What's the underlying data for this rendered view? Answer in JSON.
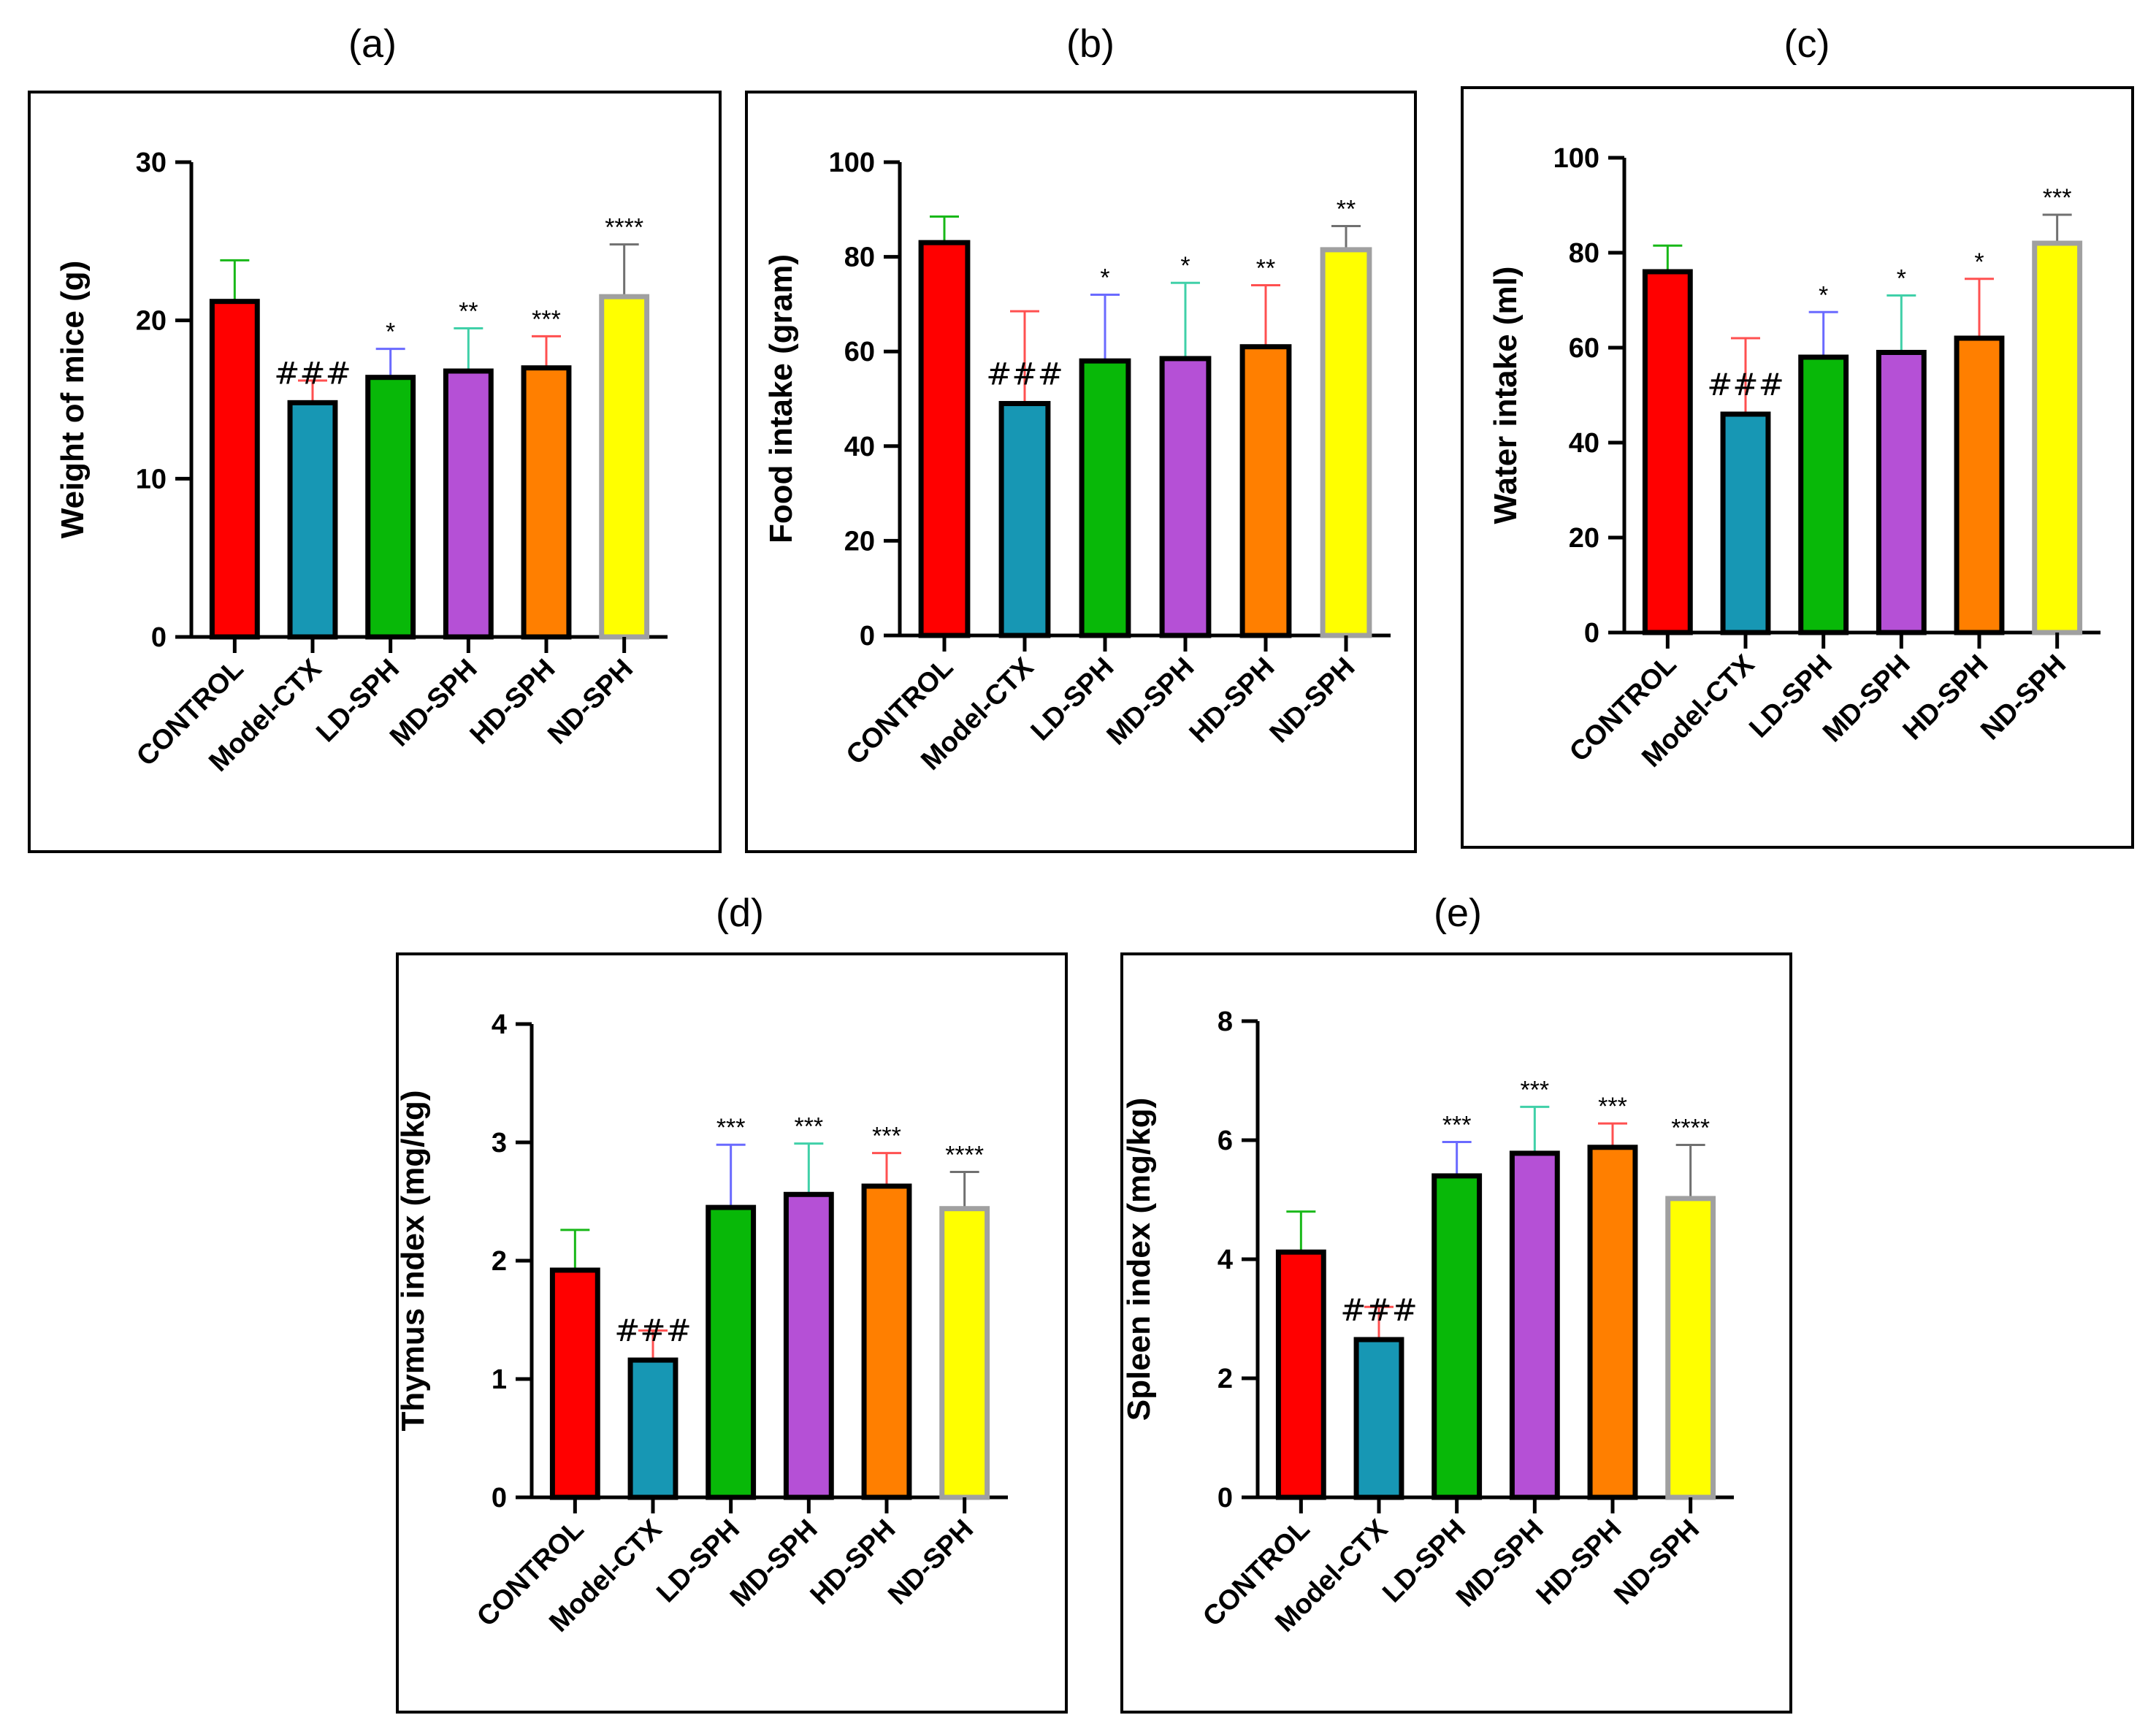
{
  "chart_data": [
    {
      "id": "a",
      "type": "bar",
      "panel_label": "(a)",
      "ylabel": "Weight of mice (g)",
      "ylim": [
        0,
        30
      ],
      "yticks": [
        "0",
        "10",
        "20",
        "30"
      ],
      "categories": [
        "CONTROL",
        "Model-CTX",
        "LD-SPH",
        "MD-SPH",
        "HD-SPH",
        "ND-SPH"
      ],
      "values": [
        21.2,
        14.8,
        16.4,
        16.8,
        17.0,
        21.5
      ],
      "errors": [
        2.6,
        1.4,
        1.8,
        2.7,
        2.0,
        3.3
      ],
      "significance": [
        "",
        "###",
        "*",
        "**",
        "***",
        "****"
      ]
    },
    {
      "id": "b",
      "type": "bar",
      "panel_label": "(b)",
      "ylabel": "Food intake (gram)",
      "ylim": [
        0,
        100
      ],
      "yticks": [
        "0",
        "20",
        "40",
        "60",
        "80",
        "100"
      ],
      "categories": [
        "CONTROL",
        "Model-CTX",
        "LD-SPH",
        "MD-SPH",
        "HD-SPH",
        "ND-SPH"
      ],
      "values": [
        83.0,
        49.0,
        58.0,
        58.5,
        61.0,
        81.5
      ],
      "errors": [
        5.5,
        19.5,
        14.0,
        16.0,
        13.0,
        5.0
      ],
      "significance": [
        "",
        "###",
        "*",
        "*",
        "**",
        "**"
      ]
    },
    {
      "id": "c",
      "type": "bar",
      "panel_label": "(c)",
      "ylabel": "Water intake (ml)",
      "ylim": [
        0,
        100
      ],
      "yticks": [
        "0",
        "20",
        "40",
        "60",
        "80",
        "100"
      ],
      "categories": [
        "CONTROL",
        "Model-CTX",
        "LD-SPH",
        "MD-SPH",
        "HD-SPH",
        "ND-SPH"
      ],
      "values": [
        76.0,
        46.0,
        58.0,
        59.0,
        62.0,
        82.0
      ],
      "errors": [
        5.5,
        16.0,
        9.5,
        12.0,
        12.5,
        6.0
      ],
      "significance": [
        "",
        "###",
        "*",
        "*",
        "*",
        "***"
      ]
    },
    {
      "id": "d",
      "type": "bar",
      "panel_label": "(d)",
      "ylabel": "Thymus index (mg/kg)",
      "ylim": [
        0,
        4
      ],
      "yticks": [
        "0",
        "1",
        "2",
        "3",
        "4"
      ],
      "categories": [
        "CONTROL",
        "Model-CTX",
        "LD-SPH",
        "MD-SPH",
        "HD-SPH",
        "ND-SPH"
      ],
      "values": [
        1.92,
        1.16,
        2.45,
        2.56,
        2.63,
        2.44
      ],
      "errors": [
        0.34,
        0.25,
        0.53,
        0.43,
        0.28,
        0.31
      ],
      "significance": [
        "",
        "###",
        "***",
        "***",
        "***",
        "****"
      ]
    },
    {
      "id": "e",
      "type": "bar",
      "panel_label": "(e)",
      "ylabel": "Spleen index (mg/kg)",
      "ylim": [
        0,
        8
      ],
      "yticks": [
        "0",
        "2",
        "4",
        "6",
        "8"
      ],
      "categories": [
        "CONTROL",
        "Model-CTX",
        "LD-SPH",
        "MD-SPH",
        "HD-SPH",
        "ND-SPH"
      ],
      "values": [
        4.12,
        2.65,
        5.4,
        5.78,
        5.88,
        5.02
      ],
      "errors": [
        0.68,
        0.55,
        0.57,
        0.78,
        0.4,
        0.9
      ],
      "significance": [
        "",
        "###",
        "***",
        "***",
        "***",
        "****"
      ]
    }
  ],
  "bar_colors": [
    "#ff0000",
    "#1797b4",
    "#08b808",
    "#b550d6",
    "#ff7f00",
    "#ffff00"
  ],
  "bar_outline_colors": [
    "#000000",
    "#000000",
    "#000000",
    "#000000",
    "#000000",
    "#a0a0a0"
  ],
  "error_colors": [
    "#18b818",
    "#ff5050",
    "#6a6aff",
    "#40d0a8",
    "#ff5050",
    "#707070"
  ]
}
